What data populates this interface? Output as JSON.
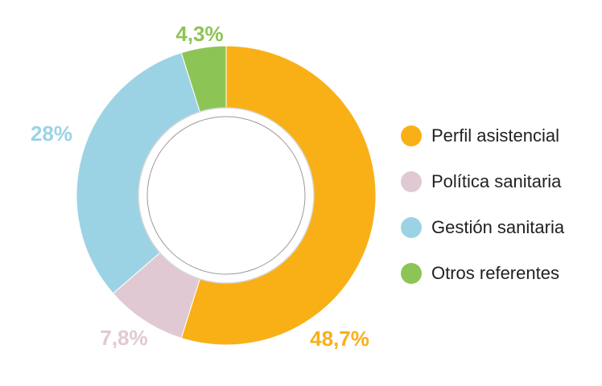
{
  "chart_data": {
    "type": "pie",
    "donut": true,
    "title": "",
    "legend_position": "right",
    "slices": [
      {
        "name": "Perfil asistencial",
        "value": 48.7,
        "label": "48,7%",
        "color": "#f9b016"
      },
      {
        "name": "Política sanitaria",
        "value": 7.8,
        "label": "7,8%",
        "color": "#e1c9d3"
      },
      {
        "name": "Gestión sanitaria",
        "value": 28,
        "label": "28%",
        "color": "#9bd3e4"
      },
      {
        "name": "Otros referentes",
        "value": 4.3,
        "label": "4,3%",
        "color": "#8dc456"
      }
    ]
  }
}
